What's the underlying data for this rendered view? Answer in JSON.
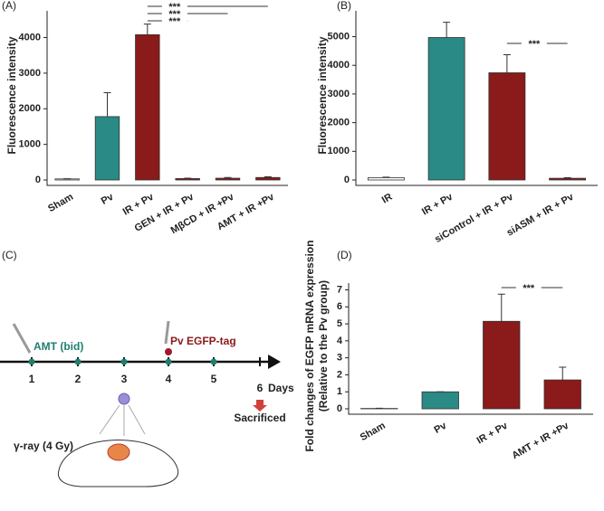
{
  "chart_data": [
    {
      "type": "bar",
      "panel": "(A)",
      "y_label": [
        "Fluorescence intensity"
      ],
      "categories": [
        "Sham",
        "Pv",
        "IR + Pv",
        "GEN + IR + Pv",
        "MβCD + IR +Pv",
        "AMT + IR +Pv"
      ],
      "values": [
        30,
        1780,
        4080,
        40,
        50,
        70
      ],
      "errors": [
        5,
        670,
        300,
        10,
        20,
        20
      ],
      "colors": [
        "#ffffff",
        "#2a8a85",
        "#8b1a1a",
        "#8b1a1a",
        "#8b1a1a",
        "#8b1a1a"
      ],
      "ylim": [
        0,
        4750
      ],
      "yticks": [
        0,
        1000,
        2000,
        3000,
        4000
      ],
      "annotations": [
        "***",
        "***",
        "***"
      ]
    },
    {
      "type": "bar",
      "panel": "(B)",
      "y_label": [
        "Fluorescence intensity"
      ],
      "categories": [
        "IR",
        "IR + Pv",
        "siControl + IR + Pv",
        "siASM + IR + Pv"
      ],
      "values": [
        80,
        4970,
        3740,
        60
      ],
      "errors": [
        20,
        530,
        630,
        20
      ],
      "colors": [
        "#ffffff",
        "#2a8a85",
        "#8b1a1a",
        "#8b1a1a"
      ],
      "ylim": [
        0,
        5900
      ],
      "yticks": [
        0,
        1000,
        2000,
        3000,
        4000,
        5000
      ],
      "annotations": [
        "***"
      ]
    },
    {
      "type": "bar",
      "panel": "(D)",
      "y_label": [
        "Fold changes of EGFP mRNA expression",
        "(Relative to the Pv group)"
      ],
      "categories": [
        "Sham",
        "Pv",
        "IR + Pv",
        "AMT + IR +Pv"
      ],
      "values": [
        0.02,
        1.0,
        5.15,
        1.7
      ],
      "errors": [
        0.01,
        0,
        1.6,
        0.75
      ],
      "colors": [
        "#ffffff",
        "#2a8a85",
        "#8b1a1a",
        "#8b1a1a"
      ],
      "ylim": [
        0,
        7.4
      ],
      "yticks": [
        0,
        1,
        2,
        3,
        4,
        5,
        6,
        7
      ],
      "annotations": [
        "***"
      ]
    }
  ],
  "timeline": {
    "panel": "(C)",
    "days": [
      "1",
      "2",
      "3",
      "4",
      "5",
      "6"
    ],
    "unit": "Days",
    "drug": "AMT (bid)",
    "tag": "Pv EGFP-tag",
    "end": "Sacrificed",
    "radiation": "γ-ray (4 Gy)"
  }
}
